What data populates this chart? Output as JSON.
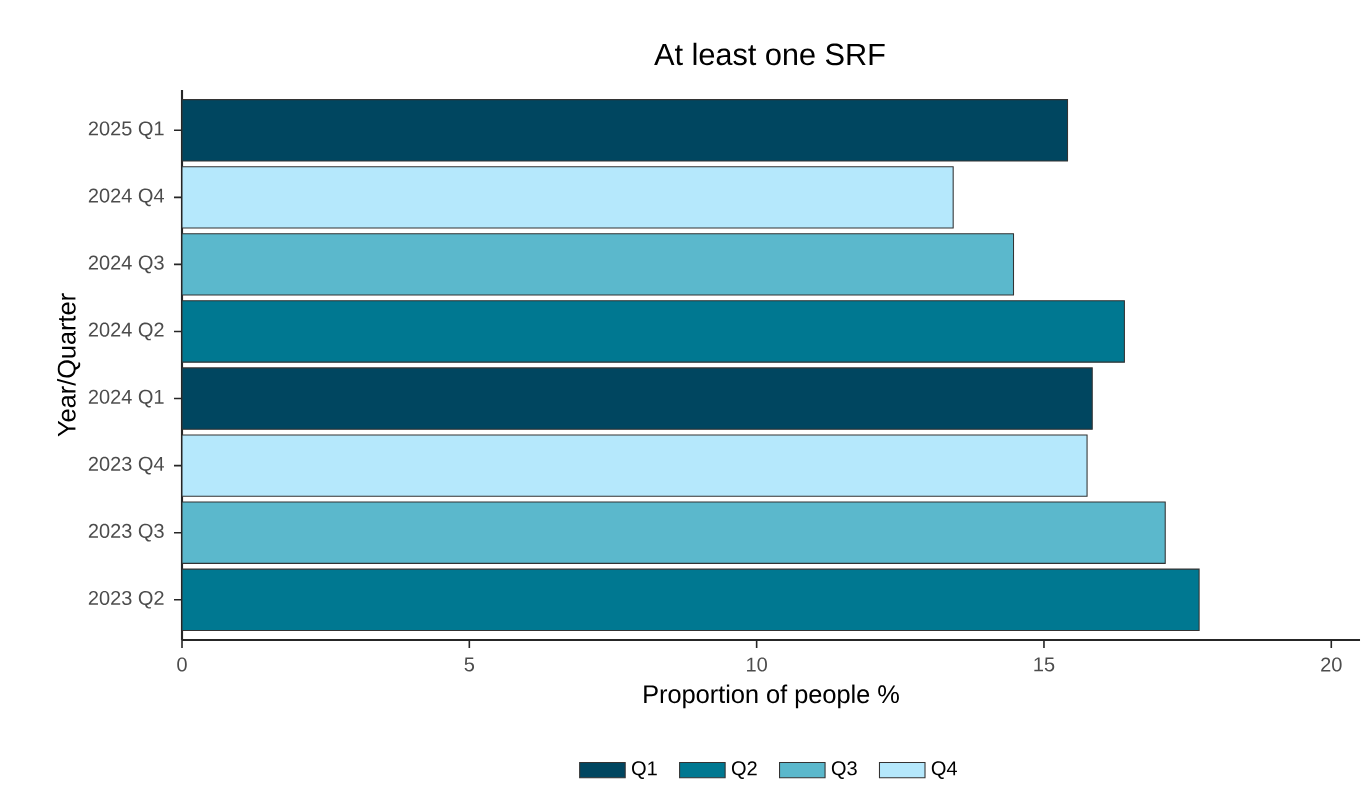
{
  "chart_data": {
    "type": "bar",
    "orientation": "horizontal",
    "stacked": true,
    "title": "At least one SRF",
    "xlabel": "Proportion of people %",
    "ylabel": "Year/Quarter",
    "categories": [
      "2025 Q1",
      "2024 Q4",
      "2024 Q3",
      "2024 Q2",
      "2024 Q1",
      "2023 Q4",
      "2023 Q3",
      "2023 Q2"
    ],
    "series": [
      {
        "name": "Q1",
        "color": "#004660",
        "values": [
          15.41,
          null,
          null,
          null,
          15.84,
          null,
          null,
          null
        ]
      },
      {
        "name": "Q2",
        "color": "#007891",
        "values": [
          null,
          null,
          null,
          16.4,
          null,
          null,
          null,
          17.7
        ]
      },
      {
        "name": "Q3",
        "color": "#5bb8cc",
        "values": [
          null,
          null,
          14.47,
          null,
          null,
          null,
          17.11,
          null
        ]
      },
      {
        "name": "Q4",
        "color": "#b5e8fc",
        "values": [
          null,
          13.42,
          null,
          null,
          null,
          15.75,
          null,
          null
        ]
      }
    ],
    "xlim": [
      0,
      20.5
    ],
    "xticks": [
      0,
      5,
      10,
      15,
      20
    ],
    "grid": false,
    "legend": "bottom"
  }
}
